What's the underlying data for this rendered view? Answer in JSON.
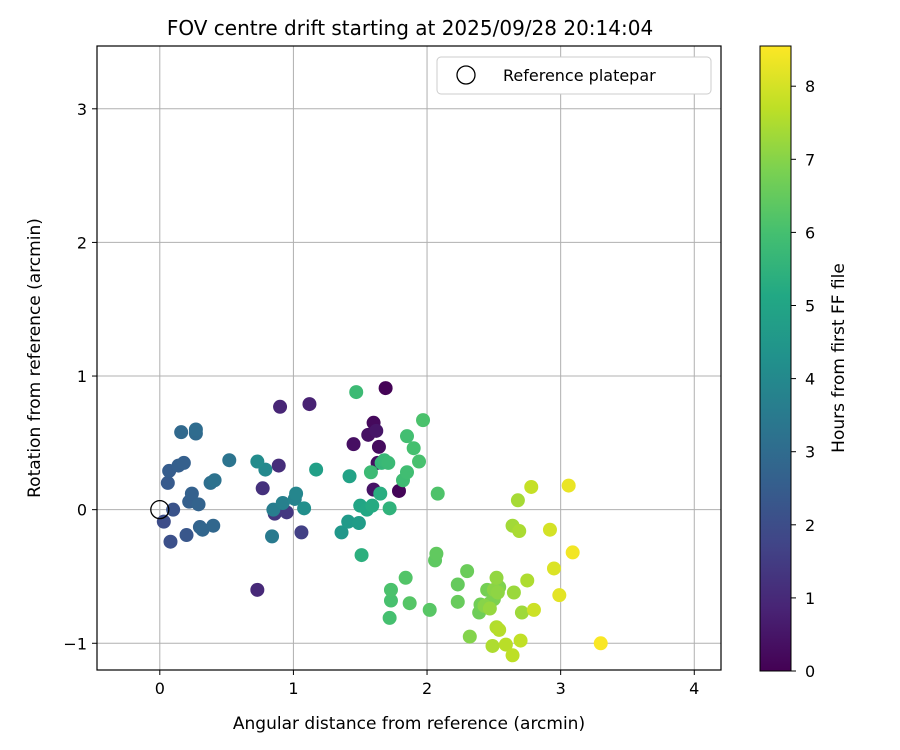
{
  "chart_data": {
    "type": "scatter",
    "title": "FOV centre drift starting at 2025/09/28 20:14:04",
    "xlabel": "Angular distance from reference (arcmin)",
    "ylabel": "Rotation from reference (arcmin)",
    "xlim": [
      -0.47,
      4.2
    ],
    "ylim": [
      -1.2,
      3.47
    ],
    "xticks": [
      0,
      1,
      2,
      3,
      4
    ],
    "xtick_labels": [
      "0",
      "1",
      "2",
      "3",
      "4"
    ],
    "yticks": [
      -1,
      0,
      1,
      2,
      3
    ],
    "ytick_labels": [
      "−1",
      "0",
      "1",
      "2",
      "3"
    ],
    "grid": true,
    "legend": {
      "position": "top-right",
      "entries": [
        {
          "label": "Reference platepar",
          "marker": "open-circle"
        }
      ]
    },
    "reference_point": {
      "x": 0,
      "y": 0
    },
    "colorbar": {
      "label": "Hours from first FF file",
      "colormap": "viridis",
      "range": [
        0,
        8.55
      ],
      "ticks": [
        0,
        1,
        2,
        3,
        4,
        5,
        6,
        7,
        8
      ],
      "tick_labels": [
        "0",
        "1",
        "2",
        "3",
        "4",
        "5",
        "6",
        "7",
        "8"
      ]
    },
    "points": [
      {
        "x": 1.69,
        "y": 0.91,
        "h": 0.05
      },
      {
        "x": 1.79,
        "y": 0.14,
        "h": 0.1
      },
      {
        "x": 1.6,
        "y": 0.65,
        "h": 0.2
      },
      {
        "x": 1.64,
        "y": 0.47,
        "h": 0.25
      },
      {
        "x": 1.63,
        "y": 0.35,
        "h": 0.3
      },
      {
        "x": 1.45,
        "y": 0.49,
        "h": 0.35
      },
      {
        "x": 1.56,
        "y": 0.56,
        "h": 0.4
      },
      {
        "x": 1.6,
        "y": 0.15,
        "h": 0.45
      },
      {
        "x": 1.62,
        "y": 0.59,
        "h": 0.5
      },
      {
        "x": 1.12,
        "y": 0.79,
        "h": 0.8
      },
      {
        "x": 0.9,
        "y": 0.77,
        "h": 0.9
      },
      {
        "x": 0.73,
        "y": -0.6,
        "h": 1.0
      },
      {
        "x": 0.89,
        "y": 0.33,
        "h": 1.1
      },
      {
        "x": 0.77,
        "y": 0.16,
        "h": 1.2
      },
      {
        "x": 0.86,
        "y": -0.03,
        "h": 1.3
      },
      {
        "x": 0.95,
        "y": -0.02,
        "h": 1.4
      },
      {
        "x": 1.06,
        "y": -0.17,
        "h": 1.6
      },
      {
        "x": 0.03,
        "y": -0.09,
        "h": 2.0
      },
      {
        "x": 0.08,
        "y": -0.24,
        "h": 2.1
      },
      {
        "x": 0.1,
        "y": 0.0,
        "h": 2.2
      },
      {
        "x": 0.2,
        "y": -0.19,
        "h": 2.3
      },
      {
        "x": 0.06,
        "y": 0.2,
        "h": 2.4
      },
      {
        "x": 0.07,
        "y": 0.29,
        "h": 2.5
      },
      {
        "x": 0.14,
        "y": 0.33,
        "h": 2.55
      },
      {
        "x": 0.18,
        "y": 0.35,
        "h": 2.6
      },
      {
        "x": 0.22,
        "y": 0.06,
        "h": 2.6
      },
      {
        "x": 0.24,
        "y": 0.12,
        "h": 2.65
      },
      {
        "x": 0.29,
        "y": 0.04,
        "h": 2.7
      },
      {
        "x": 0.3,
        "y": -0.13,
        "h": 2.75
      },
      {
        "x": 0.32,
        "y": -0.15,
        "h": 2.8
      },
      {
        "x": 0.4,
        "y": -0.12,
        "h": 2.85
      },
      {
        "x": 0.16,
        "y": 0.58,
        "h": 2.9
      },
      {
        "x": 0.27,
        "y": 0.57,
        "h": 2.95
      },
      {
        "x": 0.27,
        "y": 0.6,
        "h": 3.0
      },
      {
        "x": 0.38,
        "y": 0.2,
        "h": 3.1
      },
      {
        "x": 0.41,
        "y": 0.22,
        "h": 3.2
      },
      {
        "x": 0.52,
        "y": 0.37,
        "h": 3.3
      },
      {
        "x": 0.84,
        "y": -0.2,
        "h": 3.5
      },
      {
        "x": 0.85,
        "y": 0.0,
        "h": 3.6
      },
      {
        "x": 0.92,
        "y": 0.05,
        "h": 3.7
      },
      {
        "x": 1.01,
        "y": 0.08,
        "h": 3.8
      },
      {
        "x": 1.02,
        "y": 0.12,
        "h": 3.9
      },
      {
        "x": 0.79,
        "y": 0.3,
        "h": 4.0
      },
      {
        "x": 0.73,
        "y": 0.36,
        "h": 4.1
      },
      {
        "x": 1.08,
        "y": 0.01,
        "h": 4.2
      },
      {
        "x": 1.36,
        "y": -0.17,
        "h": 4.5
      },
      {
        "x": 1.41,
        "y": -0.09,
        "h": 4.6
      },
      {
        "x": 1.49,
        "y": -0.1,
        "h": 4.7
      },
      {
        "x": 1.17,
        "y": 0.3,
        "h": 4.8
      },
      {
        "x": 1.42,
        "y": 0.25,
        "h": 4.9
      },
      {
        "x": 1.5,
        "y": 0.03,
        "h": 5.0
      },
      {
        "x": 1.55,
        "y": 0.0,
        "h": 5.1
      },
      {
        "x": 1.59,
        "y": 0.03,
        "h": 5.2
      },
      {
        "x": 1.65,
        "y": 0.12,
        "h": 5.3
      },
      {
        "x": 1.51,
        "y": -0.34,
        "h": 5.4
      },
      {
        "x": 1.72,
        "y": 0.01,
        "h": 5.5
      },
      {
        "x": 1.66,
        "y": 0.35,
        "h": 5.6
      },
      {
        "x": 1.68,
        "y": 0.37,
        "h": 5.7
      },
      {
        "x": 1.71,
        "y": 0.35,
        "h": 5.75
      },
      {
        "x": 1.58,
        "y": 0.28,
        "h": 5.8
      },
      {
        "x": 1.47,
        "y": 0.88,
        "h": 5.8
      },
      {
        "x": 1.82,
        "y": 0.22,
        "h": 5.85
      },
      {
        "x": 1.85,
        "y": 0.28,
        "h": 5.9
      },
      {
        "x": 1.85,
        "y": 0.55,
        "h": 5.95
      },
      {
        "x": 1.9,
        "y": 0.46,
        "h": 6.0
      },
      {
        "x": 1.94,
        "y": 0.36,
        "h": 6.05
      },
      {
        "x": 1.97,
        "y": 0.67,
        "h": 6.1
      },
      {
        "x": 2.08,
        "y": 0.12,
        "h": 6.15
      },
      {
        "x": 1.72,
        "y": -0.81,
        "h": 6.0
      },
      {
        "x": 1.73,
        "y": -0.68,
        "h": 6.05
      },
      {
        "x": 1.73,
        "y": -0.6,
        "h": 6.1
      },
      {
        "x": 1.84,
        "y": -0.51,
        "h": 6.2
      },
      {
        "x": 1.87,
        "y": -0.7,
        "h": 6.25
      },
      {
        "x": 2.02,
        "y": -0.75,
        "h": 6.3
      },
      {
        "x": 2.06,
        "y": -0.38,
        "h": 6.4
      },
      {
        "x": 2.07,
        "y": -0.33,
        "h": 6.45
      },
      {
        "x": 2.23,
        "y": -0.56,
        "h": 6.5
      },
      {
        "x": 2.23,
        "y": -0.69,
        "h": 6.55
      },
      {
        "x": 2.3,
        "y": -0.46,
        "h": 6.6
      },
      {
        "x": 2.39,
        "y": -0.77,
        "h": 6.65
      },
      {
        "x": 2.4,
        "y": -0.71,
        "h": 6.7
      },
      {
        "x": 2.45,
        "y": -0.6,
        "h": 6.75
      },
      {
        "x": 2.47,
        "y": -0.7,
        "h": 6.8
      },
      {
        "x": 2.5,
        "y": -0.67,
        "h": 6.85
      },
      {
        "x": 2.54,
        "y": -0.58,
        "h": 6.9
      },
      {
        "x": 2.32,
        "y": -0.95,
        "h": 6.95
      },
      {
        "x": 2.43,
        "y": -0.72,
        "h": 7.0
      },
      {
        "x": 2.5,
        "y": -0.6,
        "h": 7.05
      },
      {
        "x": 2.53,
        "y": -0.62,
        "h": 7.1
      },
      {
        "x": 2.52,
        "y": -0.51,
        "h": 7.15
      },
      {
        "x": 2.47,
        "y": -0.74,
        "h": 7.2
      },
      {
        "x": 2.65,
        "y": -0.62,
        "h": 7.25
      },
      {
        "x": 2.71,
        "y": -0.77,
        "h": 7.3
      },
      {
        "x": 2.64,
        "y": -0.12,
        "h": 7.35
      },
      {
        "x": 2.68,
        "y": 0.07,
        "h": 7.4
      },
      {
        "x": 2.69,
        "y": -0.16,
        "h": 7.45
      },
      {
        "x": 2.75,
        "y": -0.53,
        "h": 7.5
      },
      {
        "x": 2.49,
        "y": -1.02,
        "h": 7.5
      },
      {
        "x": 2.52,
        "y": -0.88,
        "h": 7.55
      },
      {
        "x": 2.54,
        "y": -0.9,
        "h": 7.6
      },
      {
        "x": 2.59,
        "y": -1.01,
        "h": 7.65
      },
      {
        "x": 2.64,
        "y": -1.09,
        "h": 7.7
      },
      {
        "x": 2.7,
        "y": -0.98,
        "h": 7.75
      },
      {
        "x": 2.78,
        "y": 0.17,
        "h": 7.8
      },
      {
        "x": 2.8,
        "y": -0.75,
        "h": 7.9
      },
      {
        "x": 2.92,
        "y": -0.15,
        "h": 8.0
      },
      {
        "x": 2.95,
        "y": -0.44,
        "h": 8.1
      },
      {
        "x": 2.99,
        "y": -0.64,
        "h": 8.2
      },
      {
        "x": 3.06,
        "y": 0.18,
        "h": 8.3
      },
      {
        "x": 3.09,
        "y": -0.32,
        "h": 8.4
      },
      {
        "x": 3.3,
        "y": -1.0,
        "h": 8.5
      }
    ]
  }
}
